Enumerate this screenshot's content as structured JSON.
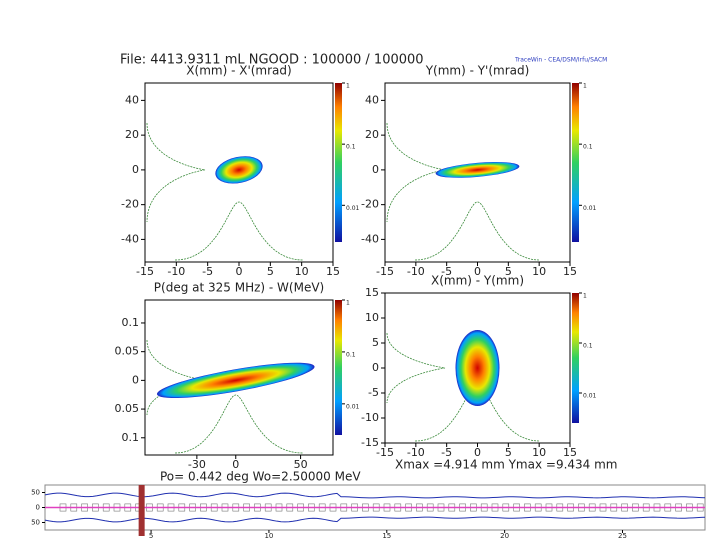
{
  "header": {
    "file_info": "File: 4413.9311 mL   NGOOD : 100000 / 100000",
    "software": "TraceWin - CEA/DSM/Irfu/SACM"
  },
  "chart_data": [
    {
      "type": "heatmap",
      "title": "X(mm) - X'(mrad)",
      "xlim": [
        -15,
        15
      ],
      "ylim": [
        -53,
        50
      ],
      "xticks": [
        -15,
        -10,
        -5,
        0,
        5,
        10,
        15
      ],
      "yticks": [
        40,
        20,
        0,
        -20,
        -40
      ],
      "colorbar_ticks": [
        1,
        0.1,
        0.01
      ],
      "colorbar_log": true
    },
    {
      "type": "heatmap",
      "title": "Y(mm) - Y'(mrad)",
      "xlim": [
        -15,
        15
      ],
      "ylim": [
        -53,
        50
      ],
      "xticks": [
        -15,
        -10,
        -5,
        0,
        5,
        10,
        15
      ],
      "yticks": [
        40,
        20,
        0,
        -20,
        -40
      ],
      "colorbar_ticks": [
        1,
        0.1,
        0.01
      ],
      "colorbar_log": true
    },
    {
      "type": "heatmap",
      "title": "P(deg at 325 MHz) - W(MeV)",
      "xlim": [
        -70,
        75
      ],
      "ylim": [
        -0.13,
        0.14
      ],
      "xticks": [
        -30,
        0,
        50
      ],
      "yticks": [
        0.1,
        0.05,
        0,
        {
          "value": -0.05,
          "label": "0.05"
        },
        {
          "value": -0.1,
          "label": "0.1"
        }
      ],
      "colorbar_ticks": [
        1,
        0.1,
        0.01
      ],
      "colorbar_log": true,
      "footer": "Po= 0.442 deg  Wo=2.50000 MeV"
    },
    {
      "type": "heatmap",
      "title": "X(mm) - Y(mm)",
      "xlim": [
        -15,
        15
      ],
      "ylim": [
        -15,
        15
      ],
      "xticks": [
        -15,
        -10,
        -5,
        0,
        5,
        10,
        15
      ],
      "yticks": [
        15,
        10,
        5,
        0,
        -5,
        -10,
        -15
      ],
      "colorbar_ticks": [
        1,
        0.1,
        0.01
      ],
      "colorbar_log": true,
      "footer": "Xmax =4.914 mm  Ymax =9.434 mm"
    },
    {
      "type": "envelope",
      "xlim": [
        0.5,
        28.5
      ],
      "ylim": [
        -75,
        75
      ],
      "xticks": [
        5,
        10,
        15,
        20,
        25
      ],
      "yticks": [
        50,
        0,
        {
          "value": -50,
          "label": "50"
        }
      ]
    }
  ]
}
